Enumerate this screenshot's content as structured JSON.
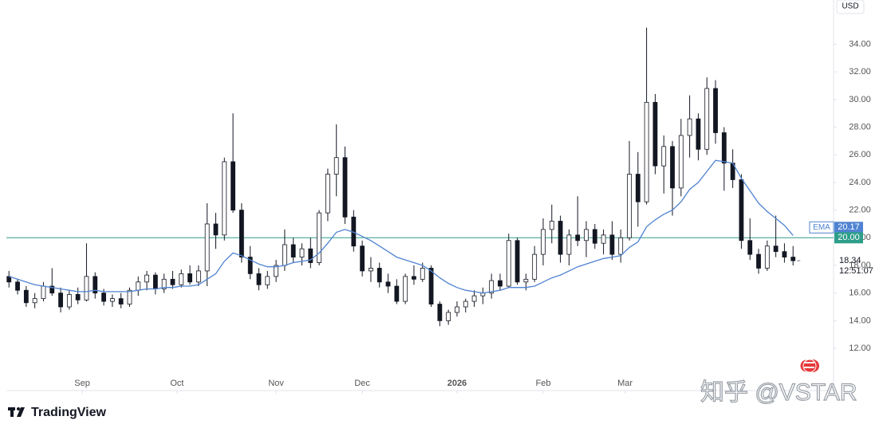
{
  "chart_data": {
    "type": "candlestick",
    "currency": "USD",
    "brand": "TradingView",
    "watermark": "知乎 @VSTAR",
    "xlim": [
      -0.3,
      95.7
    ],
    "ylim": [
      10.1,
      37.2
    ],
    "xticks": [
      {
        "value": 8.5,
        "label": "Sep"
      },
      {
        "value": 19.5,
        "label": "Oct"
      },
      {
        "value": 31,
        "label": "Nov"
      },
      {
        "value": 41,
        "label": "Dec"
      },
      {
        "value": 52,
        "label": "2026"
      },
      {
        "value": 62,
        "label": "Feb"
      },
      {
        "value": 71.5,
        "label": "Mar"
      }
    ],
    "yticks": [
      {
        "value": 12,
        "label": "12.00"
      },
      {
        "value": 14,
        "label": "14.00"
      },
      {
        "value": 16,
        "label": "16.00"
      },
      {
        "value": 18,
        "label": "18.00"
      },
      {
        "value": 20,
        "label": "20.00"
      },
      {
        "value": 22,
        "label": "22.00"
      },
      {
        "value": 24,
        "label": "24.00"
      },
      {
        "value": 26,
        "label": "26.00"
      },
      {
        "value": 28,
        "label": "28.00"
      },
      {
        "value": 30,
        "label": "30.00"
      },
      {
        "value": 32,
        "label": "32.00"
      },
      {
        "value": 34,
        "label": "34.00"
      }
    ],
    "up_color": "#ffffff",
    "down_color": "#131722",
    "x": [
      0,
      1,
      2,
      3,
      4,
      5,
      6,
      7,
      8,
      9,
      10,
      11,
      12,
      13,
      14,
      15,
      16,
      17,
      18,
      19,
      20,
      21,
      22,
      23,
      24,
      25,
      26,
      27,
      28,
      29,
      30,
      31,
      32,
      33,
      34,
      35,
      36,
      37,
      38,
      39,
      40,
      41,
      42,
      43,
      44,
      45,
      46,
      47,
      48,
      49,
      50,
      51,
      52,
      53,
      54,
      55,
      56,
      57,
      58,
      59,
      60,
      61,
      62,
      63,
      64,
      65,
      66,
      67,
      68,
      69,
      70,
      71,
      72,
      73,
      74,
      75,
      76,
      77,
      78,
      79,
      80,
      81,
      82,
      83,
      84,
      85,
      86,
      87,
      88,
      89,
      90,
      91
    ],
    "ohlc": [
      [
        17.2,
        17.6,
        16.4,
        16.8
      ],
      [
        16.8,
        17.0,
        15.9,
        16.2
      ],
      [
        16.2,
        16.5,
        15.0,
        15.3
      ],
      [
        15.3,
        16.0,
        14.9,
        15.6
      ],
      [
        15.6,
        16.8,
        15.4,
        16.5
      ],
      [
        16.5,
        17.8,
        15.8,
        16.0
      ],
      [
        16.0,
        16.4,
        14.6,
        15.0
      ],
      [
        15.0,
        16.2,
        14.8,
        15.9
      ],
      [
        15.9,
        16.4,
        15.2,
        15.5
      ],
      [
        15.5,
        19.6,
        15.4,
        17.2
      ],
      [
        17.2,
        17.5,
        15.6,
        16.0
      ],
      [
        16.0,
        16.3,
        15.1,
        15.4
      ],
      [
        15.4,
        15.9,
        15.0,
        15.6
      ],
      [
        15.6,
        16.0,
        14.9,
        15.2
      ],
      [
        15.2,
        16.4,
        15.0,
        16.2
      ],
      [
        16.2,
        17.2,
        15.8,
        16.8
      ],
      [
        16.8,
        17.6,
        16.2,
        17.3
      ],
      [
        17.3,
        17.5,
        15.9,
        16.3
      ],
      [
        16.3,
        17.4,
        16.0,
        17.0
      ],
      [
        17.0,
        17.6,
        16.3,
        16.6
      ],
      [
        16.6,
        17.7,
        16.4,
        17.4
      ],
      [
        17.4,
        18.0,
        16.6,
        16.8
      ],
      [
        16.8,
        18.0,
        16.5,
        17.6
      ],
      [
        17.6,
        22.5,
        16.5,
        21.0
      ],
      [
        21.0,
        21.8,
        19.2,
        20.2
      ],
      [
        20.2,
        25.8,
        19.8,
        25.5
      ],
      [
        25.5,
        29.0,
        21.8,
        22.0
      ],
      [
        22.0,
        22.5,
        18.2,
        18.6
      ],
      [
        18.6,
        19.4,
        17.0,
        17.4
      ],
      [
        17.4,
        17.8,
        16.2,
        16.6
      ],
      [
        16.6,
        17.6,
        16.3,
        17.2
      ],
      [
        17.2,
        18.4,
        16.8,
        18.0
      ],
      [
        18.0,
        20.6,
        17.6,
        19.5
      ],
      [
        19.5,
        20.0,
        18.2,
        18.6
      ],
      [
        18.6,
        19.6,
        18.0,
        19.2
      ],
      [
        19.2,
        20.0,
        17.8,
        18.2
      ],
      [
        18.2,
        22.0,
        18.0,
        21.8
      ],
      [
        21.8,
        25.0,
        21.2,
        24.6
      ],
      [
        24.6,
        28.2,
        23.0,
        25.8
      ],
      [
        25.8,
        26.6,
        21.0,
        21.5
      ],
      [
        21.5,
        22.0,
        19.0,
        19.4
      ],
      [
        19.4,
        19.8,
        17.2,
        17.6
      ],
      [
        17.6,
        18.6,
        16.8,
        17.8
      ],
      [
        17.8,
        18.2,
        16.4,
        16.8
      ],
      [
        16.8,
        17.4,
        16.0,
        16.5
      ],
      [
        16.5,
        17.0,
        15.2,
        15.4
      ],
      [
        15.4,
        17.4,
        15.2,
        17.2
      ],
      [
        17.2,
        18.0,
        16.6,
        17.0
      ],
      [
        17.0,
        18.2,
        16.8,
        17.8
      ],
      [
        17.8,
        18.0,
        15.0,
        15.2
      ],
      [
        15.2,
        15.4,
        13.6,
        14.0
      ],
      [
        14.0,
        14.8,
        13.7,
        14.6
      ],
      [
        14.6,
        15.4,
        14.3,
        15.0
      ],
      [
        15.0,
        15.6,
        14.6,
        15.4
      ],
      [
        15.4,
        16.2,
        15.0,
        15.8
      ],
      [
        15.8,
        16.4,
        15.2,
        16.0
      ],
      [
        16.0,
        17.4,
        15.6,
        16.9
      ],
      [
        16.9,
        17.4,
        16.2,
        16.5
      ],
      [
        16.5,
        20.3,
        16.4,
        19.8
      ],
      [
        19.8,
        20.0,
        16.6,
        16.8
      ],
      [
        16.8,
        17.4,
        16.2,
        17.0
      ],
      [
        17.0,
        19.4,
        16.8,
        18.8
      ],
      [
        18.8,
        21.4,
        18.0,
        20.6
      ],
      [
        20.6,
        22.4,
        19.6,
        21.2
      ],
      [
        21.2,
        21.6,
        18.2,
        18.8
      ],
      [
        18.8,
        20.6,
        18.0,
        20.2
      ],
      [
        20.2,
        23.0,
        19.4,
        19.8
      ],
      [
        19.8,
        21.2,
        18.6,
        20.6
      ],
      [
        20.6,
        21.0,
        19.2,
        19.6
      ],
      [
        19.6,
        20.6,
        18.8,
        20.2
      ],
      [
        20.2,
        21.2,
        18.4,
        18.8
      ],
      [
        18.8,
        20.6,
        18.2,
        20.0
      ],
      [
        20.0,
        27.0,
        19.8,
        24.6
      ],
      [
        24.6,
        26.2,
        20.8,
        22.6
      ],
      [
        22.6,
        35.2,
        22.4,
        29.8
      ],
      [
        29.8,
        30.4,
        24.6,
        25.2
      ],
      [
        25.2,
        27.4,
        23.2,
        26.6
      ],
      [
        26.6,
        27.0,
        21.6,
        23.6
      ],
      [
        23.6,
        28.6,
        23.0,
        27.4
      ],
      [
        27.4,
        30.3,
        25.8,
        28.6
      ],
      [
        28.6,
        29.0,
        25.6,
        26.4
      ],
      [
        26.4,
        31.6,
        26.0,
        30.8
      ],
      [
        30.8,
        31.4,
        26.8,
        27.6
      ],
      [
        27.6,
        28.0,
        23.4,
        25.4
      ],
      [
        25.4,
        26.4,
        23.6,
        24.2
      ],
      [
        24.2,
        24.6,
        19.2,
        19.8
      ],
      [
        19.8,
        21.4,
        18.4,
        18.8
      ],
      [
        18.8,
        19.2,
        17.4,
        17.8
      ],
      [
        17.8,
        19.8,
        17.6,
        19.4
      ],
      [
        19.4,
        21.6,
        18.6,
        19.0
      ],
      [
        19.0,
        19.6,
        18.2,
        18.6
      ],
      [
        18.6,
        19.4,
        18.0,
        18.34
      ]
    ],
    "ema": {
      "name": "EMA",
      "color": "#4f83d1",
      "values": [
        17.2,
        17.0,
        16.8,
        16.6,
        16.5,
        16.4,
        16.3,
        16.2,
        16.1,
        16.1,
        16.2,
        16.1,
        16.1,
        16.1,
        16.1,
        16.2,
        16.3,
        16.3,
        16.4,
        16.4,
        16.5,
        16.5,
        16.6,
        17.0,
        17.4,
        18.3,
        18.9,
        18.7,
        18.4,
        18.1,
        17.9,
        17.9,
        18.0,
        18.2,
        18.3,
        18.4,
        18.9,
        19.6,
        20.4,
        20.6,
        20.4,
        20.1,
        19.8,
        19.4,
        19.0,
        18.6,
        18.4,
        18.2,
        18.0,
        17.6,
        17.1,
        16.7,
        16.4,
        16.2,
        16.1,
        16.0,
        16.1,
        16.2,
        16.4,
        16.4,
        16.4,
        16.5,
        16.8,
        17.1,
        17.3,
        17.6,
        17.9,
        18.1,
        18.3,
        18.5,
        18.6,
        18.7,
        19.3,
        19.7,
        20.8,
        21.3,
        21.7,
        22.0,
        22.6,
        23.5,
        24.0,
        24.8,
        25.6,
        25.5,
        25.4,
        24.3,
        23.4,
        22.5,
        21.9,
        21.4,
        20.9,
        20.17
      ]
    },
    "hline": {
      "value": 20,
      "label": "20.00",
      "color": "#2e9e8a"
    },
    "last_time": "12:51:07"
  }
}
